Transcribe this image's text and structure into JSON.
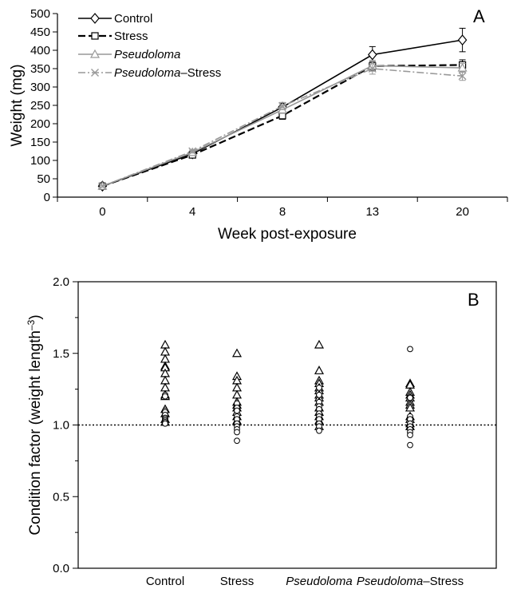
{
  "chart_data": [
    {
      "type": "line",
      "panel_label": "A",
      "xlabel": "Week post-exposure",
      "ylabel": "Weight (mg)",
      "categories": [
        "0",
        "4",
        "8",
        "13",
        "20"
      ],
      "ylim": [
        0,
        500
      ],
      "yticks": [
        0,
        50,
        100,
        150,
        200,
        250,
        300,
        350,
        400,
        450,
        500
      ],
      "legend_position": "top-left",
      "grid": false,
      "series": [
        {
          "name": "Control",
          "name_parts": [
            {
              "text": "Control",
              "italic": false
            }
          ],
          "marker": "diamond",
          "line": "solid",
          "color": "#000000",
          "values": [
            30,
            118,
            245,
            388,
            428
          ],
          "errors": [
            3,
            5,
            10,
            22,
            32
          ]
        },
        {
          "name": "Stress",
          "name_parts": [
            {
              "text": "Stress",
              "italic": false
            }
          ],
          "marker": "square",
          "line": "dashed",
          "color": "#000000",
          "values": [
            30,
            115,
            222,
            357,
            360
          ],
          "errors": [
            3,
            5,
            10,
            12,
            14
          ]
        },
        {
          "name": "Pseudoloma",
          "name_parts": [
            {
              "text": "Pseudoloma",
              "italic": true
            }
          ],
          "marker": "triangle",
          "line": "solid",
          "color": "#999999",
          "values": [
            30,
            122,
            238,
            358,
            352
          ],
          "errors": [
            3,
            5,
            10,
            15,
            12
          ]
        },
        {
          "name": "Pseudoloma–Stress",
          "name_parts": [
            {
              "text": "Pseudoloma",
              "italic": true
            },
            {
              "text": "–Stress",
              "italic": false
            }
          ],
          "marker": "x",
          "line": "dashdot",
          "color": "#999999",
          "values": [
            30,
            125,
            248,
            350,
            330
          ],
          "errors": [
            3,
            5,
            10,
            15,
            12
          ]
        }
      ]
    },
    {
      "type": "scatter",
      "panel_label": "B",
      "ylabel": "Condition factor (weight length",
      "ylabel_sup": "–3",
      "ylabel_close": ")",
      "ylim": [
        0.0,
        2.0
      ],
      "yticks": [
        0.0,
        0.5,
        1.0,
        1.5,
        2.0
      ],
      "ytick_labels": [
        "0.0",
        "0.5",
        "1.0",
        "1.5",
        "2.0"
      ],
      "reference_line": 1.0,
      "categories": [
        {
          "parts": [
            {
              "text": "Control",
              "italic": false
            }
          ],
          "triangles": [
            1.56,
            1.51,
            1.46,
            1.41,
            1.4,
            1.36,
            1.31,
            1.26,
            1.21,
            1.2,
            1.11,
            1.08,
            1.04,
            1.02
          ],
          "circles": [
            1.21,
            1.2,
            1.1,
            1.09,
            1.07,
            1.05,
            1.04,
            1.03,
            1.02,
            1.01
          ]
        },
        {
          "parts": [
            {
              "text": "Stress",
              "italic": false
            }
          ],
          "triangles": [
            1.5,
            1.34,
            1.31,
            1.26,
            1.21,
            1.16,
            1.14,
            1.12,
            1.09,
            1.06,
            1.03
          ],
          "circles": [
            1.15,
            1.12,
            1.1,
            1.06,
            1.04,
            1.01,
            0.99,
            0.97,
            0.95,
            0.89
          ]
        },
        {
          "parts": [
            {
              "text": "Pseudoloma",
              "italic": true
            }
          ],
          "triangles": [
            1.56,
            1.38,
            1.31,
            1.29,
            1.26,
            1.24,
            1.21,
            1.19,
            1.16,
            1.12,
            1.09,
            1.06,
            1.03,
            0.99
          ],
          "circles": [
            1.26,
            1.21,
            1.16,
            1.13,
            1.11,
            1.08,
            1.06,
            1.04,
            1.01,
            0.99,
            0.96
          ]
        },
        {
          "parts": [
            {
              "text": "Pseudoloma",
              "italic": true
            },
            {
              "text": "–Stress",
              "italic": false
            }
          ],
          "triangles": [
            1.29,
            1.28,
            1.23,
            1.21,
            1.19,
            1.16,
            1.14,
            1.12,
            1.06,
            1.04,
            1.01,
            0.99
          ],
          "circles": [
            1.53,
            1.19,
            1.06,
            1.04,
            1.01,
            0.99,
            0.97,
            0.95,
            0.93,
            0.86
          ]
        }
      ]
    }
  ]
}
